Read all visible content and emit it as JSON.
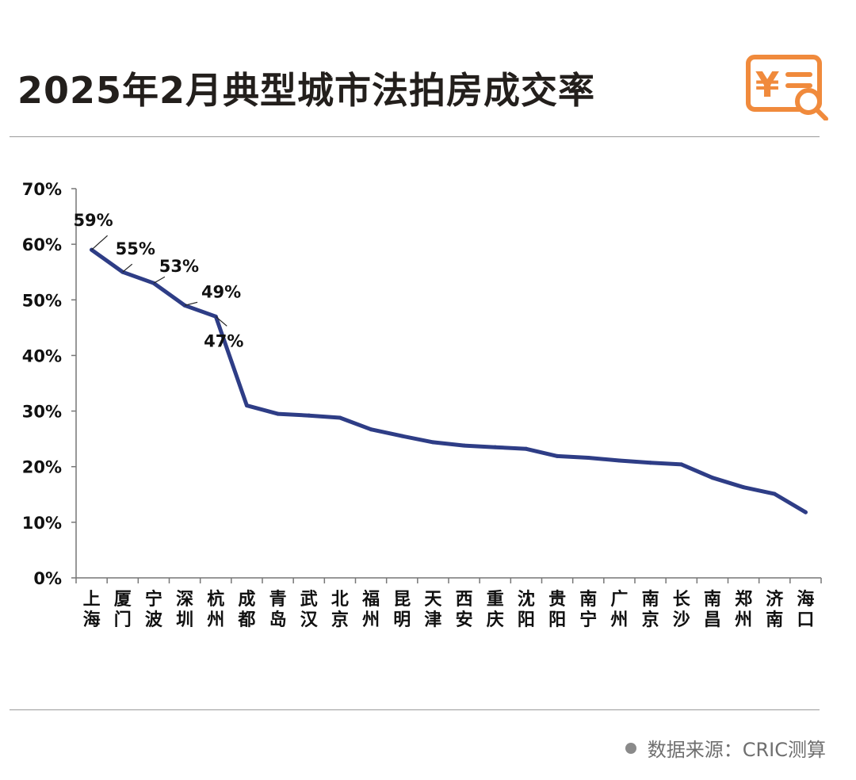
{
  "title": "2025年2月典型城市法拍房成交率",
  "source": "数据来源：CRIC测算",
  "colors": {
    "line": "#2e3d86",
    "accent": "#f08a3c",
    "rule": "#9a9a9a"
  },
  "logo_icon": "yuan-receipt-search-icon",
  "chart_data": {
    "type": "line",
    "title": "2025年2月典型城市法拍房成交率",
    "xlabel": "",
    "ylabel": "",
    "ylim": [
      0,
      70
    ],
    "yticks": [
      "0%",
      "10%",
      "20%",
      "30%",
      "40%",
      "50%",
      "60%",
      "70%"
    ],
    "grid": false,
    "legend": "none",
    "categories": [
      "上海",
      "厦门",
      "宁波",
      "深圳",
      "杭州",
      "成都",
      "青岛",
      "武汉",
      "北京",
      "福州",
      "昆明",
      "天津",
      "西安",
      "重庆",
      "沈阳",
      "贵阳",
      "南宁",
      "广州",
      "南京",
      "长沙",
      "南昌",
      "郑州",
      "济南",
      "海口"
    ],
    "series": [
      {
        "values": [
          59,
          55,
          53,
          49,
          47,
          31,
          29.5,
          29.2,
          28.8,
          26.7,
          25.5,
          24.4,
          23.8,
          23.5,
          23.2,
          21.9,
          21.6,
          21.1,
          20.7,
          20.4,
          18,
          16.3,
          15.1,
          11.8
        ],
        "data_labels": [
          "59%",
          "55%",
          "53%",
          "49%",
          "47%"
        ]
      }
    ]
  }
}
